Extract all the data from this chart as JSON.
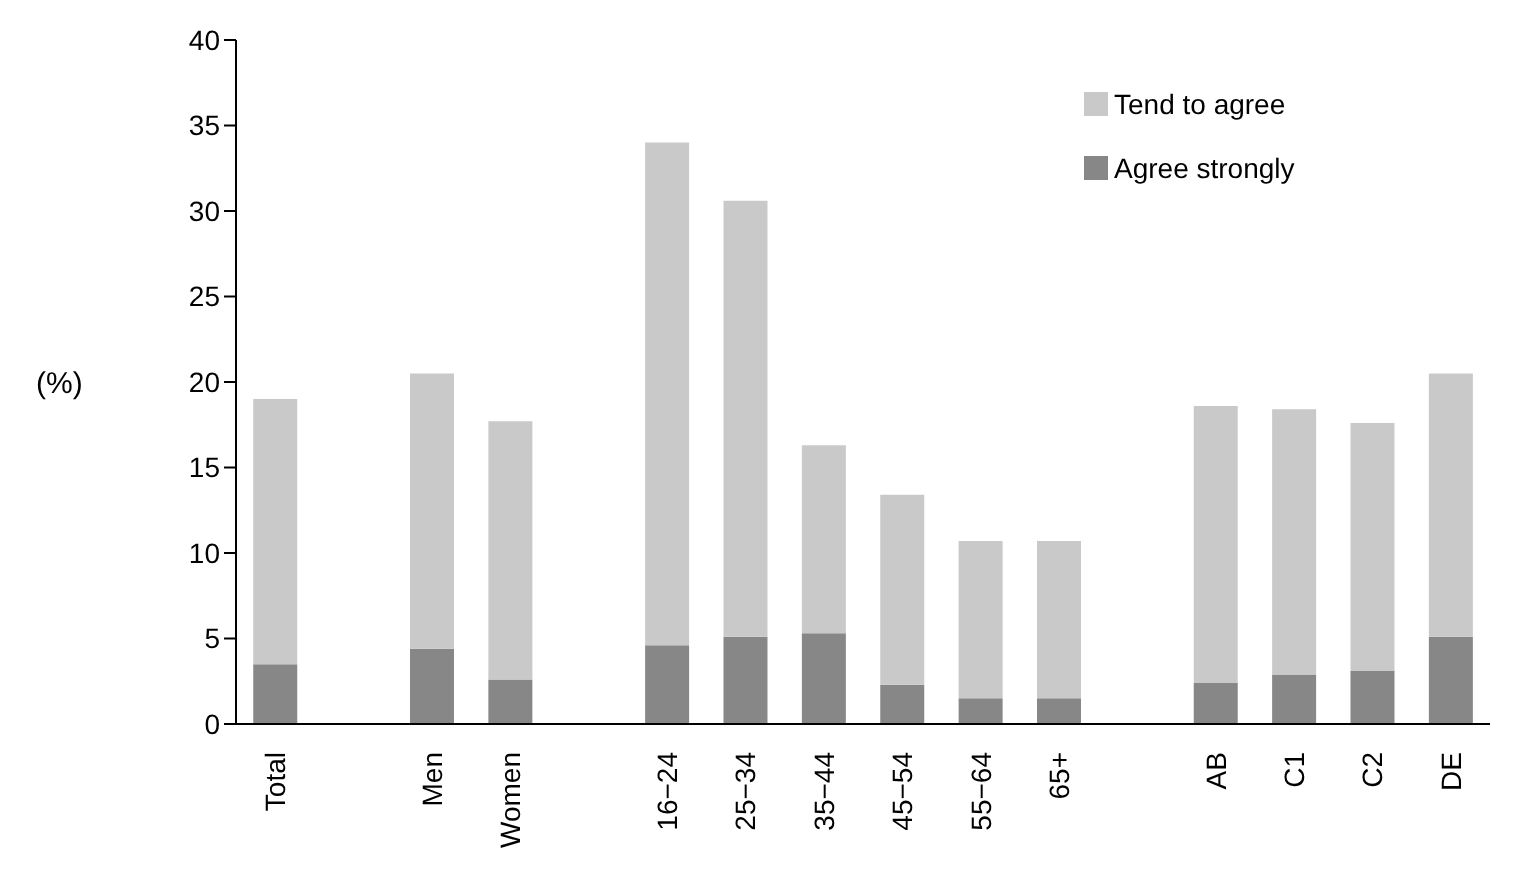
{
  "chart_data": {
    "type": "bar",
    "stacked": true,
    "ylabel": "(%)",
    "categories": [
      "Total",
      null,
      "Men",
      "Women",
      null,
      "16−24",
      "25−34",
      "35−44",
      "45−54",
      "55−64",
      "65+",
      null,
      "AB",
      "C1",
      "C2",
      "DE"
    ],
    "series": [
      {
        "name": "Agree strongly",
        "color": "#878787",
        "values": [
          3.5,
          null,
          4.4,
          2.6,
          null,
          4.6,
          5.1,
          5.3,
          2.3,
          1.5,
          1.5,
          null,
          2.4,
          2.9,
          3.1,
          5.1
        ]
      },
      {
        "name": "Tend to agree",
        "color": "#c9c9c9",
        "values": [
          15.5,
          null,
          16.1,
          15.1,
          null,
          29.4,
          25.5,
          11.0,
          11.1,
          9.2,
          9.2,
          null,
          16.2,
          15.5,
          14.5,
          15.4
        ]
      }
    ],
    "ylim": [
      0,
      40
    ],
    "yticks": [
      0,
      5,
      10,
      15,
      20,
      25,
      30,
      35,
      40
    ],
    "grid": false,
    "legend": "top right"
  }
}
